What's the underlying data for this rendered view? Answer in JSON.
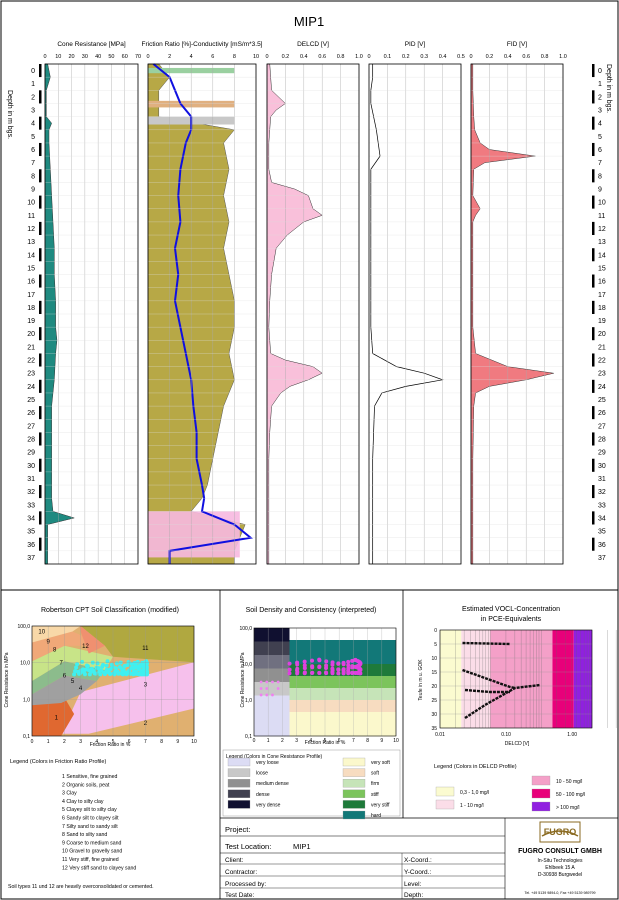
{
  "title": "MIP1",
  "depth_label": "Depth in m bgs.",
  "depth_ticks": [
    "0",
    "1",
    "2",
    "3",
    "4",
    "5",
    "6",
    "7",
    "8",
    "9",
    "10",
    "11",
    "12",
    "13",
    "14",
    "15",
    "16",
    "17",
    "18",
    "19",
    "20",
    "21",
    "22",
    "23",
    "24",
    "25",
    "26",
    "27",
    "28",
    "29",
    "30",
    "31",
    "32",
    "33",
    "34",
    "35",
    "36",
    "37"
  ],
  "chart_data": [
    {
      "type": "area",
      "title": "Cone Resistance [MPa]",
      "x_ticks": [
        "0",
        "10",
        "20",
        "30",
        "40",
        "50",
        "60",
        "70"
      ],
      "xlim": [
        0,
        70
      ],
      "ylim": [
        0,
        38
      ],
      "fill": "#1f8a80",
      "series": [
        {
          "depth": [
            0,
            1,
            2,
            3,
            4,
            4.5,
            5,
            6,
            8,
            10,
            12,
            14,
            16,
            18,
            20,
            21,
            22,
            24,
            26,
            28,
            30,
            32,
            33,
            34,
            34.5,
            35,
            36,
            37,
            38
          ],
          "values": [
            2,
            4,
            1,
            1,
            1,
            5,
            3,
            3,
            4,
            5,
            6,
            7,
            7,
            8,
            8,
            9,
            8,
            7,
            5,
            5,
            5,
            5,
            5,
            6,
            22,
            2,
            2,
            2,
            2
          ]
        }
      ]
    },
    {
      "type": "area",
      "title": "Friction Ratio [%]-Conductivity [mS/m*3.5]",
      "x_ticks": [
        "0",
        "2",
        "4",
        "6",
        "8",
        "10"
      ],
      "xlim": [
        0,
        10
      ],
      "ylim": [
        0,
        38
      ],
      "series": [
        {
          "depth": [
            0,
            1,
            2,
            3,
            4,
            5,
            6,
            8,
            10,
            12,
            14,
            16,
            18,
            20,
            22,
            24,
            26,
            28,
            30,
            32,
            33,
            34,
            35,
            36,
            37,
            38
          ],
          "values": [
            1,
            2,
            1,
            1,
            1,
            8,
            7,
            7.5,
            7,
            7.5,
            7,
            7.5,
            8,
            8,
            7.5,
            8,
            7,
            6.5,
            6,
            5.5,
            5,
            4,
            9,
            8.5,
            8,
            8
          ]
        },
        {
          "depth": [
            0,
            1,
            2,
            3,
            4,
            5,
            6,
            8,
            10,
            12,
            14,
            16,
            18,
            20,
            22,
            24,
            26,
            28,
            30,
            32,
            33,
            34,
            35,
            36,
            37,
            38
          ],
          "values": [
            0.5,
            2,
            2.5,
            3,
            4,
            4,
            3.5,
            3,
            2.8,
            3,
            2.5,
            2.8,
            2.5,
            3,
            3.5,
            4,
            4.2,
            4.5,
            4.5,
            5,
            5.2,
            5,
            8,
            9.5,
            2,
            2
          ]
        }
      ]
    },
    {
      "type": "area",
      "title": "DELCD [V]",
      "x_ticks": [
        "0",
        "0.2",
        "0.4",
        "0.6",
        "0.8",
        "1.0"
      ],
      "xlim": [
        0,
        1
      ],
      "ylim": [
        0,
        38
      ],
      "fill": "#f9c0da",
      "series": [
        {
          "depth": [
            0,
            2,
            3,
            3.5,
            4,
            5,
            6,
            7,
            8,
            9,
            9.5,
            10,
            11,
            11.5,
            12,
            13,
            14,
            16,
            18,
            20,
            22,
            22.5,
            23,
            23.5,
            24,
            24.5,
            25,
            26,
            28,
            30,
            34,
            38
          ],
          "values": [
            0.03,
            0.05,
            0.2,
            0.1,
            0.04,
            0.03,
            0.02,
            0.02,
            0.02,
            0.05,
            0.3,
            0.45,
            0.5,
            0.6,
            0.4,
            0.22,
            0.1,
            0.05,
            0.03,
            0.02,
            0.04,
            0.2,
            0.5,
            0.6,
            0.45,
            0.25,
            0.15,
            0.05,
            0.03,
            0.02,
            0.02,
            0.02
          ]
        }
      ]
    },
    {
      "type": "line",
      "title": "PID [V]",
      "x_ticks": [
        "0",
        "0.1",
        "0.2",
        "0.3",
        "0.4",
        "0.5"
      ],
      "xlim": [
        0,
        0.5
      ],
      "ylim": [
        0,
        38
      ],
      "series": [
        {
          "depth": [
            0,
            1,
            2,
            3,
            5,
            6,
            7,
            8,
            10,
            12,
            14,
            16,
            18,
            20,
            22,
            23,
            23.5,
            24,
            24.5,
            25,
            26,
            30,
            38
          ],
          "values": [
            0.02,
            0.02,
            0.01,
            0.01,
            0.04,
            0.05,
            0.06,
            0.01,
            0.01,
            0.01,
            0.01,
            0.01,
            0.01,
            0.01,
            0.02,
            0.15,
            0.3,
            0.4,
            0.2,
            0.07,
            0.03,
            0.02,
            0.02
          ]
        }
      ]
    },
    {
      "type": "area",
      "title": "FID [V]",
      "x_ticks": [
        "0",
        "0.2",
        "0.4",
        "0.6",
        "0.8",
        "1.0"
      ],
      "xlim": [
        0,
        1
      ],
      "ylim": [
        0,
        38
      ],
      "fill": "#f07a80",
      "series": [
        {
          "depth": [
            0,
            2,
            4,
            5,
            6,
            6.5,
            7,
            7.5,
            8,
            10,
            11,
            11.5,
            12,
            14,
            20,
            22,
            23,
            23.5,
            24,
            24.5,
            25,
            26,
            30,
            38
          ],
          "values": [
            0.02,
            0.02,
            0.03,
            0.04,
            0.1,
            0.2,
            0.7,
            0.15,
            0.03,
            0.02,
            0.1,
            0.05,
            0.02,
            0.02,
            0.02,
            0.05,
            0.4,
            0.9,
            0.6,
            0.2,
            0.05,
            0.03,
            0.02,
            0.02
          ]
        }
      ]
    }
  ],
  "robertson": {
    "title": "Robertson CPT Soil Classification (modified)",
    "xlabel": "Friction Ratio in %",
    "ylabel": "Cone Resistance in MPa",
    "x_ticks": [
      "0",
      "1",
      "2",
      "3",
      "4",
      "5",
      "6",
      "7",
      "8",
      "9",
      "10"
    ],
    "y_ticks": [
      "100,0",
      "10,0",
      "1,0",
      "0,1"
    ],
    "zones": [
      "1",
      "2",
      "3",
      "4",
      "5",
      "6",
      "7",
      "8",
      "9",
      "10",
      "11",
      "12"
    ]
  },
  "density": {
    "title": "Soil Density and Consistency (interpreted)",
    "xlabel": "Friction Ratio in %",
    "ylabel": "Cone Resistance in MPa",
    "x_ticks": [
      "0",
      "1",
      "2",
      "3",
      "4",
      "5",
      "6",
      "7",
      "8",
      "9",
      "10"
    ],
    "y_ticks": [
      "100,0",
      "10,0",
      "1,0",
      "0,1"
    ]
  },
  "vocl": {
    "title_line1": "Estimated VOCL-Concentration",
    "title_line2": "in PCE-Equivalents",
    "xlabel": "DELCD [V]",
    "ylabel": "Teufe in m u. GOK",
    "x_ticks": [
      "0.01",
      "0.10",
      "1.00"
    ],
    "y_ticks": [
      "0",
      "5",
      "10",
      "15",
      "20",
      "25",
      "30",
      "35"
    ]
  },
  "legend_friction": {
    "title": "Legend (Colors in Friction Ratio Profile)",
    "items": [
      "1  Sensitive, fine grained",
      "2  Organic soils, peat",
      "3  Clay",
      "4  Clay to silty clay",
      "5  Clayey silt to silty clay",
      "6  Sandy silt to clayey silt",
      "7  Silty sand to sandy silt",
      "8  Sand to silty sand",
      "9  Coarse to medium sand",
      "10  Gravel to gravelly sand",
      "11  Very stiff, fine grained",
      "12  Very stiff sand to clayey sand"
    ],
    "note": "Soil types 11 und 12 are heavily overconsolidated or cemented."
  },
  "legend_cone": {
    "title": "Legend (Colors in Cone Resistance Profile)",
    "items": [
      {
        "label": "very loose",
        "color": "#dcdcf4"
      },
      {
        "label": "loose",
        "color": "#c8c8c8"
      },
      {
        "label": "medium dense",
        "color": "#909090"
      },
      {
        "label": "dense",
        "color": "#404050"
      },
      {
        "label": "very dense",
        "color": "#101030"
      },
      {
        "label": "very soft",
        "color": "#fbf8cc"
      },
      {
        "label": "soft",
        "color": "#f7dcc0"
      },
      {
        "label": "firm",
        "color": "#c6e4b8"
      },
      {
        "label": "stiff",
        "color": "#7cc45c"
      },
      {
        "label": "very stiff",
        "color": "#1e7a3a"
      },
      {
        "label": "hard",
        "color": "#127878"
      }
    ]
  },
  "legend_delcd": {
    "title": "Legend (Colors in DELCD Profile)",
    "items": [
      {
        "label": "0,3 - 1,0 mg/l",
        "color": "#fbfbd0"
      },
      {
        "label": "1 - 10 mg/l",
        "color": "#fbdde8"
      },
      {
        "label": "10 - 50 mg/l",
        "color": "#f4a0c8"
      },
      {
        "label": "50 - 100 mg/l",
        "color": "#e8007a"
      },
      {
        "label": "> 100 mg/l",
        "color": "#9020e0"
      }
    ]
  },
  "info": {
    "project_label": "Project:",
    "project_value": "",
    "location_label": "Test Location:",
    "location_value": "MIP1",
    "client_label": "Client:",
    "contractor_label": "Contractor:",
    "processed_label": "Processed by:",
    "date_label": "Test Date:",
    "xcoord_label": "X-Coord.:",
    "ycoord_label": "Y-Coord.:",
    "level_label": "Level:",
    "depth_label": "Depth:"
  },
  "company": {
    "logo": "FUGRO",
    "name": "FUGRO CONSULT GMBH",
    "line1": "In-Situ Technologies",
    "line2": "Ehlbeek 15 A",
    "line3": "D-30938 Burgwedel",
    "line4": "Tel. +49 5139 9894-0, Fax +49 5139 989799"
  },
  "colors": {
    "cone_fill": "#1f8a80",
    "friction_fill": "#b7a846",
    "conductivity": "#1010e0",
    "delcd_fill": "#f9c0da",
    "fid_fill": "#f07a80"
  }
}
